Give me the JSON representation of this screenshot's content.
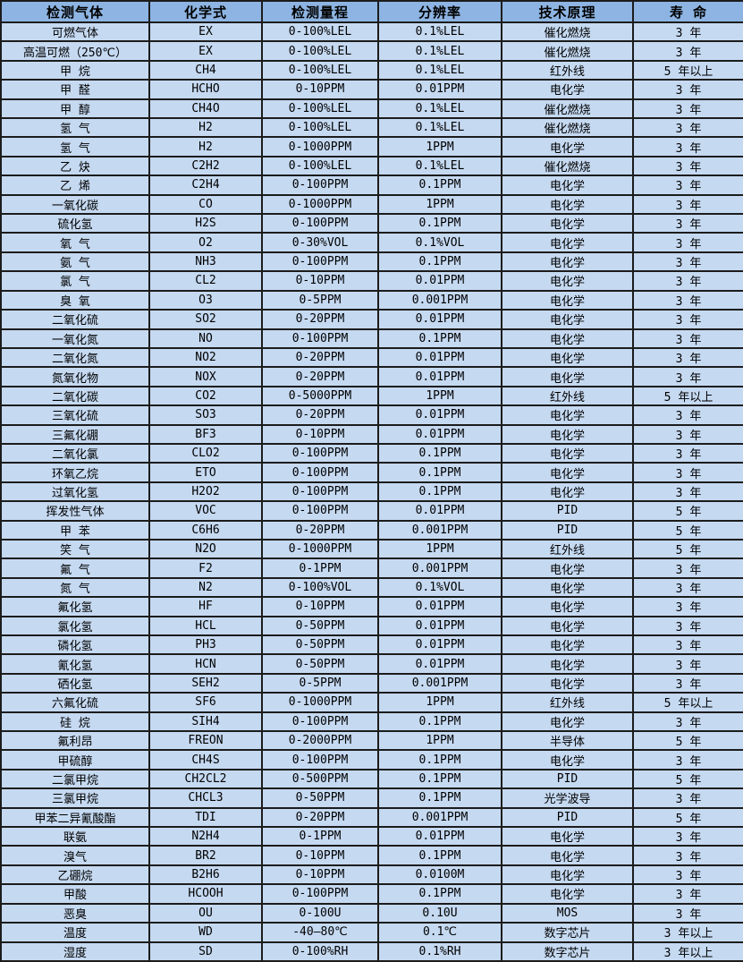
{
  "colors": {
    "header_bg": "#8DB4E2",
    "row_bg": "#C5D9F1",
    "border": "#1c1c1c",
    "text": "#000000"
  },
  "chart_data": {
    "type": "table",
    "title": "",
    "columns": [
      "检测气体",
      "化学式",
      "检测量程",
      "分辨率",
      "技术原理",
      "寿 命"
    ],
    "rows": [
      [
        "可燃气体",
        "EX",
        "0-100%LEL",
        "0.1%LEL",
        "催化燃烧",
        "3 年"
      ],
      [
        "高温可燃（250℃）",
        "EX",
        "0-100%LEL",
        "0.1%LEL",
        "催化燃烧",
        "3 年"
      ],
      [
        "甲 烷",
        "CH4",
        "0-100%LEL",
        "0.1%LEL",
        "红外线",
        "5 年以上"
      ],
      [
        "甲 醛",
        "HCHO",
        "0-10PPM",
        "0.01PPM",
        "电化学",
        "3 年"
      ],
      [
        "甲 醇",
        "CH4O",
        "0-100%LEL",
        "0.1%LEL",
        "催化燃烧",
        "3 年"
      ],
      [
        "氢 气",
        "H2",
        "0-100%LEL",
        "0.1%LEL",
        "催化燃烧",
        "3 年"
      ],
      [
        "氢 气",
        "H2",
        "0-1000PPM",
        "1PPM",
        "电化学",
        "3 年"
      ],
      [
        "乙 炔",
        "C2H2",
        "0-100%LEL",
        "0.1%LEL",
        "催化燃烧",
        "3 年"
      ],
      [
        "乙 烯",
        "C2H4",
        "0-100PPM",
        "0.1PPM",
        "电化学",
        "3 年"
      ],
      [
        "一氧化碳",
        "CO",
        "0-1000PPM",
        "1PPM",
        "电化学",
        "3 年"
      ],
      [
        "硫化氢",
        "H2S",
        "0-100PPM",
        "0.1PPM",
        "电化学",
        "3 年"
      ],
      [
        "氧 气",
        "O2",
        "0-30%VOL",
        "0.1%VOL",
        "电化学",
        "3 年"
      ],
      [
        "氨 气",
        "NH3",
        "0-100PPM",
        "0.1PPM",
        "电化学",
        "3 年"
      ],
      [
        "氯 气",
        "CL2",
        "0-10PPM",
        "0.01PPM",
        "电化学",
        "3 年"
      ],
      [
        "臭 氧",
        "O3",
        "0-5PPM",
        "0.001PPM",
        "电化学",
        "3 年"
      ],
      [
        "二氧化硫",
        "SO2",
        "0-20PPM",
        "0.01PPM",
        "电化学",
        "3 年"
      ],
      [
        "一氧化氮",
        "NO",
        "0-100PPM",
        "0.1PPM",
        "电化学",
        "3 年"
      ],
      [
        "二氧化氮",
        "NO2",
        "0-20PPM",
        "0.01PPM",
        "电化学",
        "3 年"
      ],
      [
        "氮氧化物",
        "NOX",
        "0-20PPM",
        "0.01PPM",
        "电化学",
        "3 年"
      ],
      [
        "二氧化碳",
        "CO2",
        "0-5000PPM",
        "1PPM",
        "红外线",
        "5 年以上"
      ],
      [
        "三氧化硫",
        "SO3",
        "0-20PPM",
        "0.01PPM",
        "电化学",
        "3 年"
      ],
      [
        "三氟化硼",
        "BF3",
        "0-10PPM",
        "0.01PPM",
        "电化学",
        "3 年"
      ],
      [
        "二氧化氯",
        "CLO2",
        "0-100PPM",
        "0.1PPM",
        "电化学",
        "3 年"
      ],
      [
        "环氧乙烷",
        "ETO",
        "0-100PPM",
        "0.1PPM",
        "电化学",
        "3 年"
      ],
      [
        "过氧化氢",
        "H2O2",
        "0-100PPM",
        "0.1PPM",
        "电化学",
        "3 年"
      ],
      [
        "挥发性气体",
        "VOC",
        "0-100PPM",
        "0.01PPM",
        "PID",
        "5 年"
      ],
      [
        "甲 苯",
        "C6H6",
        "0-20PPM",
        "0.001PPM",
        "PID",
        "5 年"
      ],
      [
        "笑 气",
        "N2O",
        "0-1000PPM",
        "1PPM",
        "红外线",
        "5 年"
      ],
      [
        "氟 气",
        "F2",
        "0-1PPM",
        "0.001PPM",
        "电化学",
        "3 年"
      ],
      [
        "氮 气",
        "N2",
        "0-100%VOL",
        "0.1%VOL",
        "电化学",
        "3 年"
      ],
      [
        "氟化氢",
        "HF",
        "0-10PPM",
        "0.01PPM",
        "电化学",
        "3 年"
      ],
      [
        "氯化氢",
        "HCL",
        "0-50PPM",
        "0.01PPM",
        "电化学",
        "3 年"
      ],
      [
        "磷化氢",
        "PH3",
        "0-50PPM",
        "0.01PPM",
        "电化学",
        "3 年"
      ],
      [
        "氰化氢",
        "HCN",
        "0-50PPM",
        "0.01PPM",
        "电化学",
        "3 年"
      ],
      [
        "硒化氢",
        "SEH2",
        "0-5PPM",
        "0.001PPM",
        "电化学",
        "3 年"
      ],
      [
        "六氟化硫",
        "SF6",
        "0-1000PPM",
        "1PPM",
        "红外线",
        "5 年以上"
      ],
      [
        "硅 烷",
        "SIH4",
        "0-100PPM",
        "0.1PPM",
        "电化学",
        "3 年"
      ],
      [
        "氟利昂",
        "FREON",
        "0-2000PPM",
        "1PPM",
        "半导体",
        "5 年"
      ],
      [
        "甲硫醇",
        "CH4S",
        "0-100PPM",
        "0.1PPM",
        "电化学",
        "3 年"
      ],
      [
        "二氯甲烷",
        "CH2CL2",
        "0-500PPM",
        "0.1PPM",
        "PID",
        "5 年"
      ],
      [
        "三氯甲烷",
        "CHCL3",
        "0-50PPM",
        "0.1PPM",
        "光学波导",
        "3 年"
      ],
      [
        "甲苯二异氰酸酯",
        "TDI",
        "0-20PPM",
        "0.001PPM",
        "PID",
        "5 年"
      ],
      [
        "联氨",
        "N2H4",
        "0-1PPM",
        "0.01PPM",
        "电化学",
        "3 年"
      ],
      [
        "溴气",
        "BR2",
        "0-10PPM",
        "0.1PPM",
        "电化学",
        "3 年"
      ],
      [
        "乙硼烷",
        "B2H6",
        "0-10PPM",
        "0.0100M",
        "电化学",
        "3 年"
      ],
      [
        "甲酸",
        "HCOOH",
        "0-100PPM",
        "0.1PPM",
        "电化学",
        "3 年"
      ],
      [
        "恶臭",
        "OU",
        "0-100U",
        "0.10U",
        "MOS",
        "3 年"
      ],
      [
        "温度",
        "WD",
        "-40—80℃",
        "0.1℃",
        "数字芯片",
        "3 年以上"
      ],
      [
        "湿度",
        "SD",
        "0-100%RH",
        "0.1%RH",
        "数字芯片",
        "3 年以上"
      ]
    ]
  }
}
